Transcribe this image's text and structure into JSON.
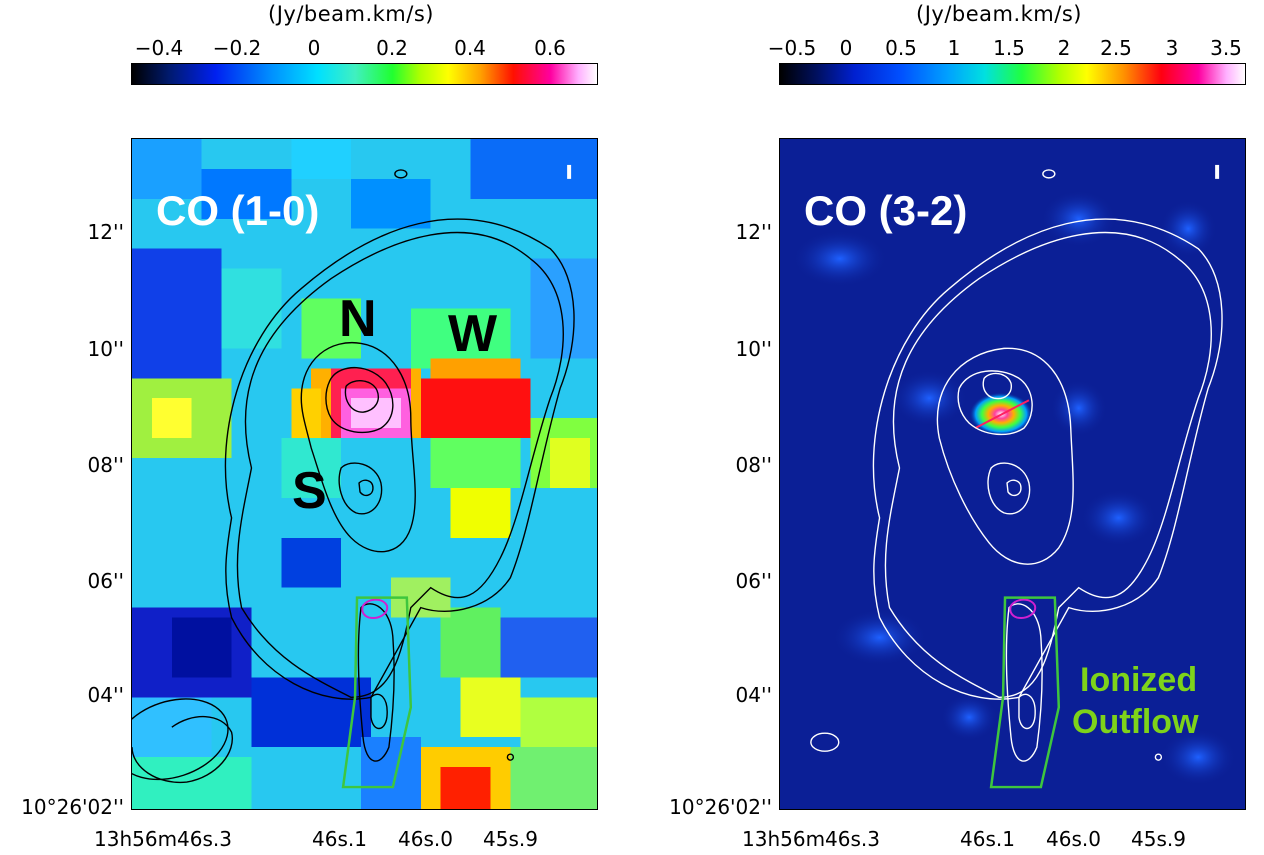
{
  "left_panel": {
    "colorbar_title": "(Jy/beam.km/s)",
    "colorbar_ticks": [
      "−0.4",
      "−0.2",
      "0",
      "0.2",
      "0.4",
      "0.6"
    ],
    "map_label": "CO (1-0)",
    "region_labels": [
      "N",
      "W",
      "S"
    ],
    "y_ticks": [
      "12''",
      "10''",
      "08''",
      "06''",
      "04''"
    ],
    "y_origin": "10°26'02''",
    "x_ticks": [
      "13h56m46s.3",
      "46s.1",
      "46s.0",
      "45s.9"
    ]
  },
  "right_panel": {
    "colorbar_title": "(Jy/beam.km/s)",
    "colorbar_ticks": [
      "−0.5",
      "0",
      "0.5",
      "1",
      "1.5",
      "2",
      "2.5",
      "3",
      "3.5"
    ],
    "map_label": "CO (3-2)",
    "annotation_line1": "Ionized",
    "annotation_line2": "Outflow",
    "y_ticks": [
      "12''",
      "10''",
      "08''",
      "06''",
      "04''"
    ],
    "y_origin": "10°26'02''",
    "x_ticks": [
      "13h56m46s.3",
      "46s.1",
      "46s.0",
      "45s.9"
    ]
  },
  "colors": {
    "outflow_box": "#3ec63e",
    "peak_contour": "#d020d0",
    "annotation": "#7ed31a"
  }
}
